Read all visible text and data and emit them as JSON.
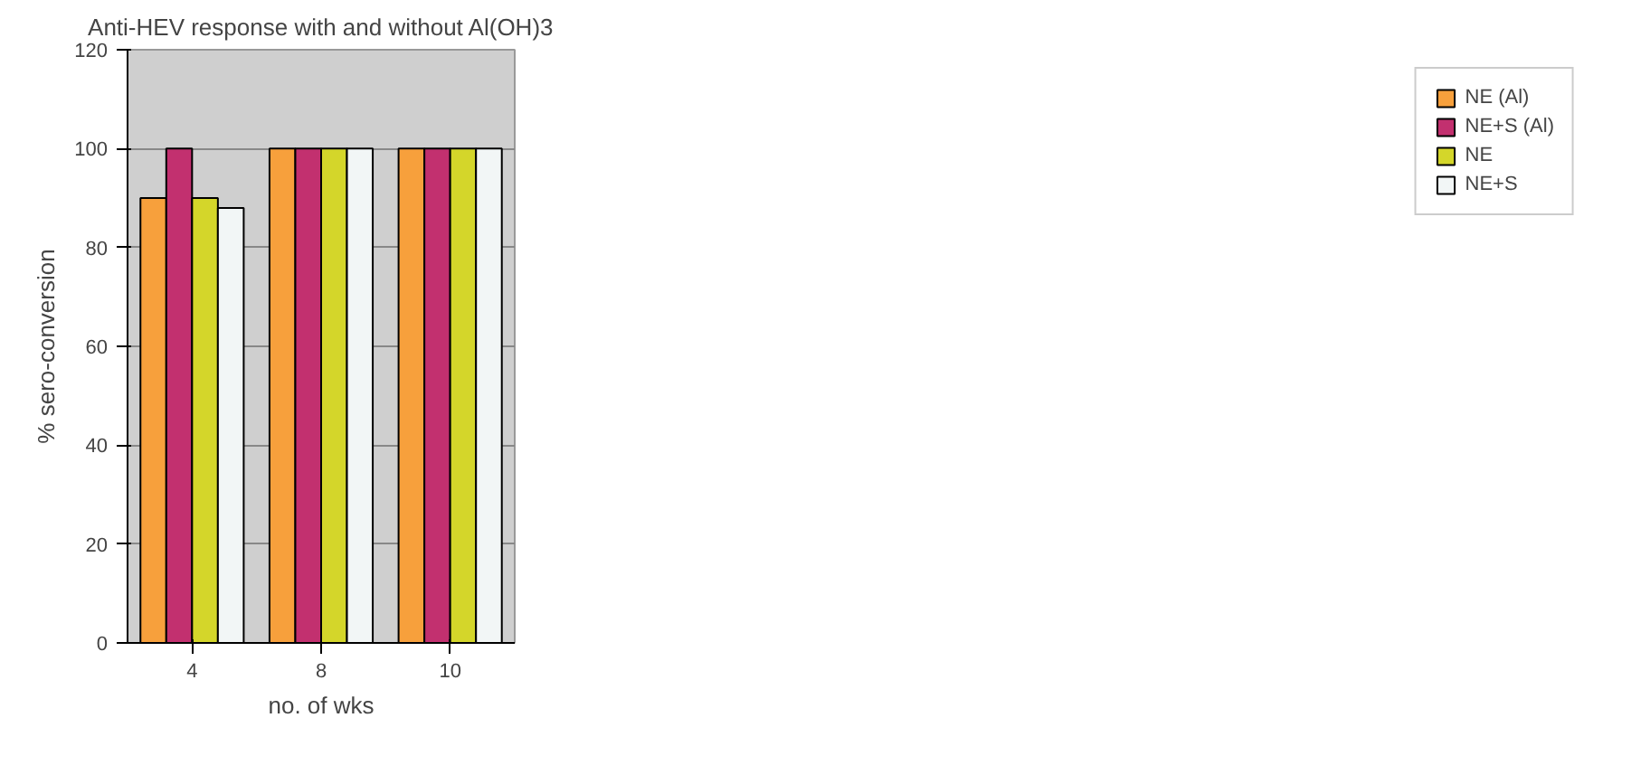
{
  "chart_data": {
    "type": "bar",
    "title": "Anti-HEV response with and without Al(OH)3",
    "xlabel": "no. of wks",
    "ylabel": "% sero-conversion",
    "categories": [
      "4",
      "8",
      "10"
    ],
    "series": [
      {
        "name": "NE (Al)",
        "color": "#f7a03c",
        "values": [
          90,
          100,
          100
        ]
      },
      {
        "name": "NE+S (Al)",
        "color": "#c2306f",
        "values": [
          100,
          100,
          100
        ]
      },
      {
        "name": "NE",
        "color": "#d4d62a",
        "values": [
          90,
          100,
          100
        ]
      },
      {
        "name": "NE+S",
        "color": "#f2f6f6",
        "values": [
          88,
          100,
          100
        ]
      }
    ],
    "ylim": [
      0,
      120
    ],
    "yticks": [
      0,
      20,
      40,
      60,
      80,
      100,
      120
    ],
    "grid": "y",
    "legend": "right"
  }
}
